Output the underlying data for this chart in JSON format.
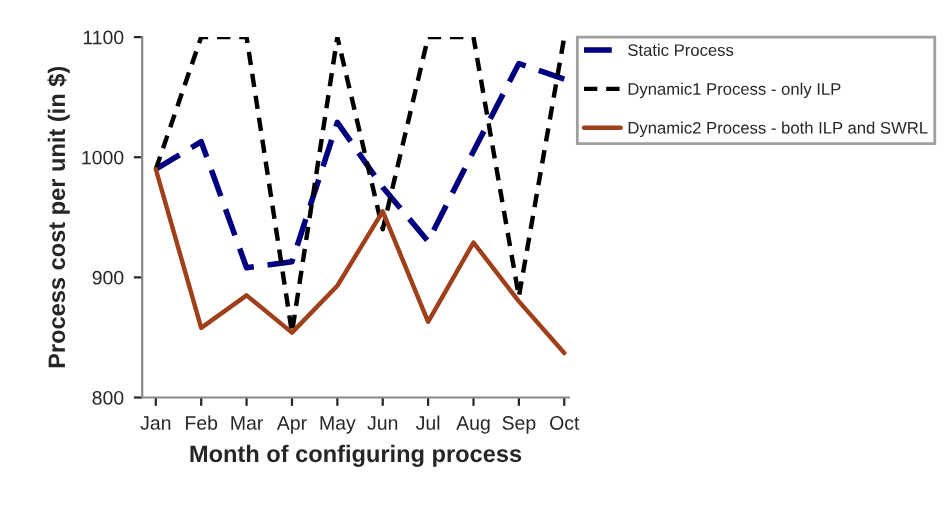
{
  "chart_data": {
    "type": "line",
    "xlabel": "Month of configuring process",
    "ylabel": "Process cost per unit (in $)",
    "categories": [
      "Jan",
      "Feb",
      "Mar",
      "Apr",
      "May",
      "Jun",
      "Jul",
      "Aug",
      "Sep",
      "Oct"
    ],
    "ylim": [
      800,
      1100
    ],
    "yticks": [
      800,
      900,
      1000,
      1100
    ],
    "grid": false,
    "legend": "top right",
    "marker": "none",
    "series": [
      {
        "name": "Static Process",
        "color": "#000080",
        "line_style": "dashed_long",
        "values": [
          990,
          1013,
          908,
          913,
          1029,
          975,
          930,
          1005,
          1078,
          1065
        ]
      },
      {
        "name": "Dynamic1 Process - only ILP",
        "color": "#000000",
        "line_style": "dashed",
        "values": [
          990,
          1100,
          1100,
          854,
          1100,
          940,
          1100,
          1100,
          884,
          1100
        ]
      },
      {
        "name": "Dynamic2 Process - both ILP and SWRL",
        "color": "#a0401a",
        "line_style": "solid",
        "values": [
          990,
          858,
          885,
          854,
          893,
          955,
          863,
          929,
          880,
          837
        ]
      }
    ]
  }
}
